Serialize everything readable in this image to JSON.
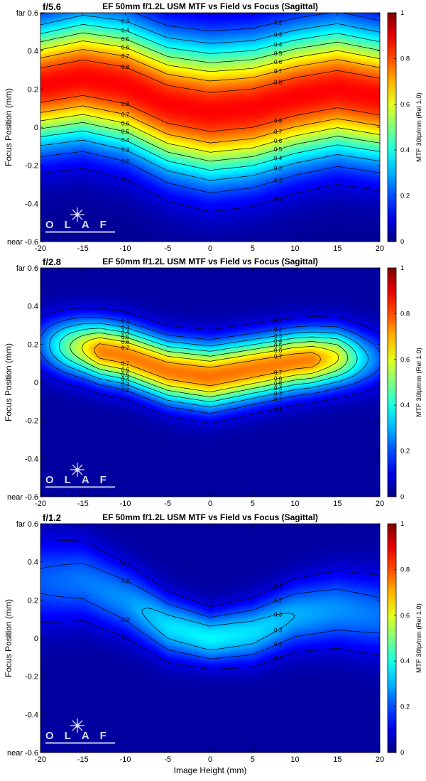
{
  "chart_data": [
    {
      "type": "heatmap",
      "aperture": "f/5.6",
      "title": "EF 50mm f/1.2L USM MTF vs Field vs Focus (Sagittal)",
      "xlabel": "",
      "ylabel": "Focus Position (mm)",
      "xlim": [
        -20,
        20
      ],
      "ylim": [
        -0.6,
        0.6
      ],
      "x_ticks": [
        "-20",
        "-15",
        "-10",
        "-5",
        "0",
        "5",
        "10",
        "15",
        "20"
      ],
      "y_ticks": [
        "near -0.6",
        "-0.4",
        "-0.2",
        "0",
        "0.2",
        "0.4",
        "far 0.6"
      ],
      "colorbar": {
        "label": "MTF 30lp/mm (Rel 1.0)",
        "range": [
          0,
          1
        ],
        "ticks": [
          "0",
          "0.2",
          "0.4",
          "0.6",
          "0.8",
          "1"
        ],
        "colormap": "jet"
      },
      "contour_levels": [
        0.1,
        0.2,
        0.3,
        0.4,
        0.5,
        0.6,
        0.7,
        0.8
      ],
      "model": {
        "peak": 0.92,
        "center": [
          [
            -20,
            0.22
          ],
          [
            -15,
            0.26
          ],
          [
            -10,
            0.22
          ],
          [
            -5,
            0.12
          ],
          [
            0,
            0.08
          ],
          [
            5,
            0.1
          ],
          [
            10,
            0.16
          ],
          [
            15,
            0.2
          ],
          [
            20,
            0.16
          ]
        ],
        "width": [
          [
            -20,
            0.3
          ],
          [
            0,
            0.34
          ],
          [
            20,
            0.32
          ]
        ],
        "ridge_peak": [
          [
            -20,
            0.95
          ],
          [
            20,
            0.95
          ]
        ],
        "base": 0.02
      },
      "watermark": "OLAF"
    },
    {
      "type": "heatmap",
      "aperture": "f/2.8",
      "title": "EF 50mm f/1.2L USM MTF vs Field vs Focus (Sagittal)",
      "xlabel": "",
      "ylabel": "Focus Position (mm)",
      "xlim": [
        -20,
        20
      ],
      "ylim": [
        -0.6,
        0.6
      ],
      "x_ticks": [
        "-20",
        "-15",
        "-10",
        "-5",
        "0",
        "5",
        "10",
        "15",
        "20"
      ],
      "y_ticks": [
        "near -0.6",
        "-0.4",
        "-0.2",
        "0",
        "0.2",
        "0.4",
        "far 0.6"
      ],
      "colorbar": {
        "label": "MTF 30lp/mm (Rel 1.0)",
        "range": [
          0,
          1
        ],
        "ticks": [
          "0",
          "0.2",
          "0.4",
          "0.6",
          "0.8",
          "1"
        ],
        "colormap": "jet"
      },
      "contour_levels": [
        0.1,
        0.2,
        0.3,
        0.4,
        0.5,
        0.6,
        0.7,
        0.8
      ],
      "model": {
        "peak": 0.85,
        "center": [
          [
            -20,
            0.2
          ],
          [
            -15,
            0.18
          ],
          [
            -10,
            0.14
          ],
          [
            -5,
            0.06
          ],
          [
            0,
            0.03
          ],
          [
            5,
            0.07
          ],
          [
            10,
            0.11
          ],
          [
            15,
            0.13
          ],
          [
            20,
            0.12
          ]
        ],
        "width": [
          [
            -20,
            0.14
          ],
          [
            0,
            0.16
          ],
          [
            20,
            0.14
          ]
        ],
        "ridge_peak": [
          [
            -20,
            0.25
          ],
          [
            -17,
            0.55
          ],
          [
            -13,
            0.88
          ],
          [
            0,
            0.9
          ],
          [
            12,
            0.88
          ],
          [
            15,
            0.72
          ],
          [
            18,
            0.4
          ],
          [
            20,
            0.25
          ]
        ],
        "base": 0.03
      },
      "watermark": "OLAF"
    },
    {
      "type": "heatmap",
      "aperture": "f/1.2",
      "title": "EF 50mm f/1.2L USM MTF vs Field vs Focus (Sagittal)",
      "xlabel": "Image Height (mm)",
      "ylabel": "Focus Position (mm)",
      "xlim": [
        -20,
        20
      ],
      "ylim": [
        -0.6,
        0.6
      ],
      "x_ticks": [
        "-20",
        "-15",
        "-10",
        "-5",
        "0",
        "5",
        "10",
        "15",
        "20"
      ],
      "y_ticks": [
        "near -0.6",
        "-0.4",
        "-0.2",
        "0",
        "0.2",
        "0.4",
        "far 0.6"
      ],
      "colorbar": {
        "label": "MTF 30lp/mm (Rel 1.0)",
        "range": [
          0,
          1
        ],
        "ticks": [
          "0",
          "0.2",
          "0.4",
          "0.6",
          "0.8",
          "1"
        ],
        "colormap": "jet"
      },
      "contour_levels": [
        0.1,
        0.2,
        0.3,
        0.4,
        0.5,
        0.6
      ],
      "model": {
        "peak": 0.6,
        "center": [
          [
            -20,
            0.3
          ],
          [
            -15,
            0.3
          ],
          [
            -10,
            0.2
          ],
          [
            -5,
            0.06
          ],
          [
            0,
            0.0
          ],
          [
            5,
            0.03
          ],
          [
            10,
            0.12
          ],
          [
            15,
            0.15
          ],
          [
            20,
            0.12
          ]
        ],
        "width": [
          [
            -20,
            0.22
          ],
          [
            0,
            0.13
          ],
          [
            20,
            0.2
          ]
        ],
        "ridge_peak": [
          [
            -20,
            0.36
          ],
          [
            -10,
            0.45
          ],
          [
            -5,
            0.58
          ],
          [
            0,
            0.62
          ],
          [
            5,
            0.58
          ],
          [
            10,
            0.5
          ],
          [
            20,
            0.4
          ]
        ],
        "base": 0.03
      },
      "watermark": "OLAF"
    }
  ]
}
